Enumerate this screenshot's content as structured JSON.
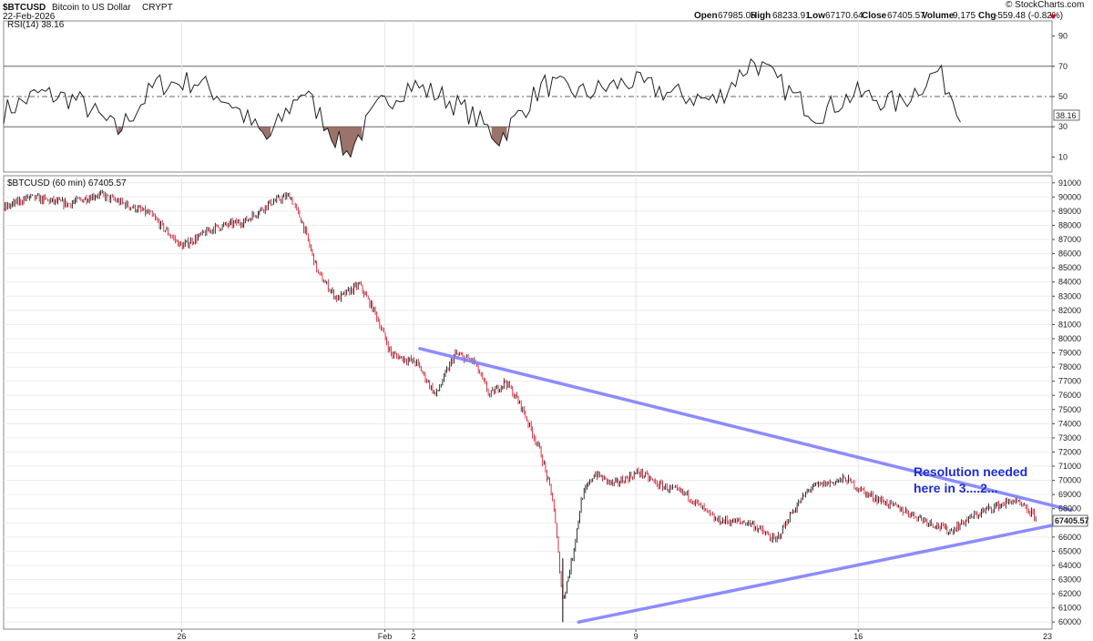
{
  "header": {
    "symbol": "$BTCUSD",
    "name": "Bitcoin to US Dollar",
    "exchange": "CRYPT",
    "date": "22-Feb-2026",
    "brand": "© StockCharts.com",
    "open_label": "Open",
    "open": "67985.05",
    "high_label": "High",
    "high": "68233.91",
    "low_label": "Low",
    "low": "67170.64",
    "close_label": "Close",
    "close": "67405.57",
    "volume_label": "Volume",
    "volume": "9,175",
    "chg_label": "Chg",
    "chg": "-559.48 (-0.82%)"
  },
  "colors": {
    "up": "#000000",
    "down": "#d0021b",
    "trendline": "#8080ff",
    "rsi_fill": "#8b5a50",
    "annotation": "#1f2bd6"
  },
  "chart_data": [
    {
      "type": "line",
      "title": "RSI(14) 38.16",
      "last_value_label": "38.16",
      "ylim": [
        0,
        100
      ],
      "yticks": [
        10,
        30,
        50,
        70,
        90
      ],
      "reference_lines": [
        30,
        50,
        70
      ],
      "oversold_fill_below": 30,
      "x_days": [
        0,
        1.1,
        2.3,
        3.6,
        4.8,
        6.1,
        7.2,
        8.3,
        9.4,
        10.8,
        11.8,
        12.8,
        13.8,
        14.6,
        15.6,
        17.0,
        18.3,
        19.7,
        21.0,
        22.4,
        23.6,
        24.6,
        25.6,
        26.8,
        28.2,
        29.4,
        30.2
      ],
      "values": [
        40,
        52,
        48,
        27,
        58,
        60,
        45,
        21,
        55,
        12,
        43,
        58,
        50,
        40,
        22,
        58,
        52,
        60,
        52,
        47,
        74,
        55,
        38,
        52,
        45,
        67,
        38
      ]
    },
    {
      "type": "candlestick",
      "title": "$BTCUSD (60 min) 67405.57",
      "last_value_label": "67405.57",
      "x_unit": "days from chart start",
      "xlim": [
        0,
        33
      ],
      "x_ticks": [
        {
          "label": "26",
          "day": 5.6
        },
        {
          "label": "Feb",
          "day": 12
        },
        {
          "label": "2",
          "day": 12.9
        },
        {
          "label": "9",
          "day": 19.9
        },
        {
          "label": "16",
          "day": 26.9
        },
        {
          "label": "23",
          "day": 33.9
        }
      ],
      "ylim": [
        59500,
        91500
      ],
      "yticks": [
        60000,
        61000,
        62000,
        63000,
        64000,
        65000,
        66000,
        67000,
        68000,
        69000,
        70000,
        71000,
        72000,
        73000,
        74000,
        75000,
        76000,
        77000,
        78000,
        79000,
        80000,
        81000,
        82000,
        83000,
        84000,
        85000,
        86000,
        87000,
        88000,
        89000,
        90000,
        91000
      ],
      "price_path": [
        [
          0,
          89200
        ],
        [
          0.8,
          90000
        ],
        [
          2.0,
          89500
        ],
        [
          3.0,
          90200
        ],
        [
          4.6,
          88800
        ],
        [
          5.6,
          86500
        ],
        [
          6.6,
          87800
        ],
        [
          7.6,
          88300
        ],
        [
          8.4,
          89600
        ],
        [
          9.0,
          90100
        ],
        [
          9.4,
          88200
        ],
        [
          9.9,
          84600
        ],
        [
          10.5,
          82800
        ],
        [
          11.2,
          83800
        ],
        [
          11.7,
          81800
        ],
        [
          12.2,
          78900
        ],
        [
          13.0,
          78300
        ],
        [
          13.6,
          76000
        ],
        [
          14.2,
          78900
        ],
        [
          14.8,
          78400
        ],
        [
          15.3,
          76000
        ],
        [
          15.8,
          77000
        ],
        [
          16.3,
          75200
        ],
        [
          16.9,
          72000
        ],
        [
          17.3,
          68500
        ],
        [
          17.6,
          61500
        ],
        [
          17.9,
          64500
        ],
        [
          18.2,
          68800
        ],
        [
          18.6,
          70500
        ],
        [
          19.2,
          69700
        ],
        [
          20.0,
          70600
        ],
        [
          20.6,
          69700
        ],
        [
          21.5,
          69000
        ],
        [
          22.4,
          67200
        ],
        [
          23.5,
          67000
        ],
        [
          24.3,
          65700
        ],
        [
          24.8,
          67700
        ],
        [
          25.4,
          69500
        ],
        [
          26.5,
          70100
        ],
        [
          27.2,
          69000
        ],
        [
          28.0,
          68200
        ],
        [
          29.0,
          67200
        ],
        [
          29.8,
          66400
        ],
        [
          30.3,
          67200
        ],
        [
          31.0,
          68000
        ],
        [
          31.8,
          68600
        ],
        [
          32.5,
          67400
        ]
      ],
      "trendlines": [
        {
          "name": "upper",
          "start": [
            13.1,
            79300
          ],
          "end": [
            33.6,
            67900
          ]
        },
        {
          "name": "lower",
          "start": [
            18.1,
            60000
          ],
          "end": [
            33.6,
            67100
          ]
        }
      ],
      "annotation": [
        "Resolution needed",
        "here in 3....2..."
      ]
    }
  ]
}
